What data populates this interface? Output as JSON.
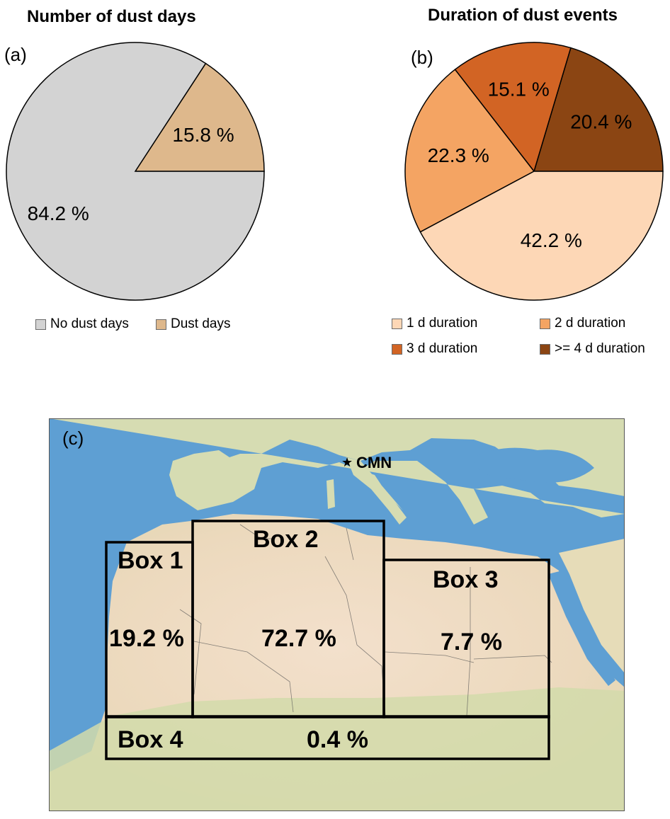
{
  "chart_data": [
    {
      "panel": "(a)",
      "type": "pie",
      "title": "Number of dust days",
      "categories": [
        "No dust days",
        "Dust days"
      ],
      "values": [
        84.2,
        15.8
      ],
      "labels": [
        "84.2 %",
        "15.8 %"
      ],
      "colors": [
        "#d3d3d3",
        "#deb88c"
      ],
      "legend": "bottom"
    },
    {
      "panel": "(b)",
      "type": "pie",
      "title": "Duration of dust events",
      "categories": [
        "1 d duration",
        "2 d duration",
        "3 d duration",
        ">= 4 d duration"
      ],
      "values": [
        42.2,
        22.3,
        15.1,
        20.4
      ],
      "labels": [
        "42.2 %",
        "22.3 %",
        "15.1 %",
        "20.4 %"
      ],
      "colors": [
        "#fdd7b6",
        "#f4a463",
        "#d26424",
        "#8b4513"
      ],
      "legend": "bottom"
    },
    {
      "panel": "(c)",
      "type": "map",
      "station": "CMN",
      "boxes": [
        {
          "name": "Box 1",
          "value": "19.2 %"
        },
        {
          "name": "Box 2",
          "value": "72.7 %"
        },
        {
          "name": "Box 3",
          "value": "7.7 %"
        },
        {
          "name": "Box 4",
          "value": "0.4 %"
        }
      ],
      "colors": {
        "sea": "#5e9fd3",
        "land": "#e2ddb6",
        "desert": "#f1dcc6",
        "green": "#c9d6a4"
      }
    }
  ]
}
